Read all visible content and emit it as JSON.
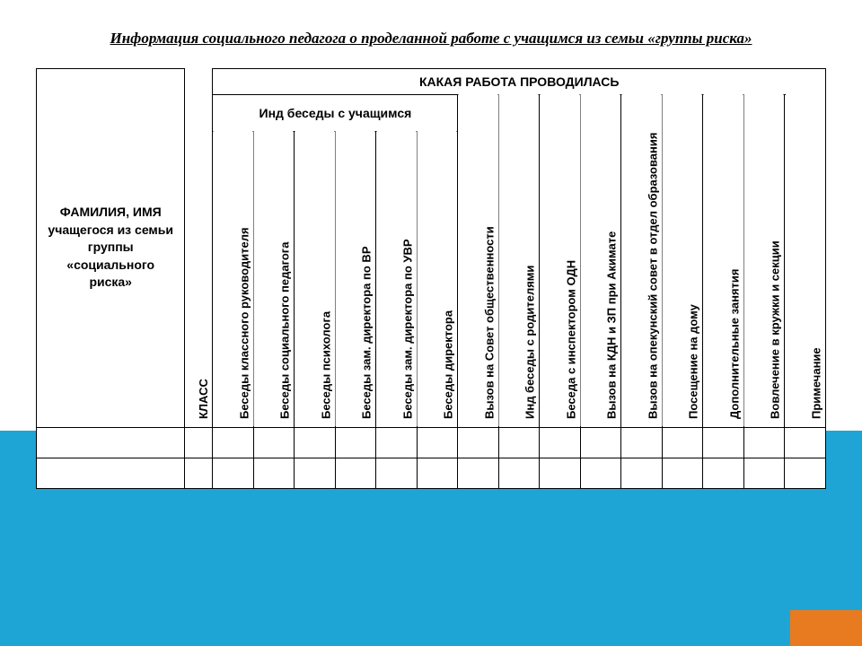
{
  "title": "Информация социального педагога о проделанной работе с учащимся из семьи «группы риска»",
  "colors": {
    "page_bg": "#ffffff",
    "accent_bar": "#1ea5d6",
    "corner_accent": "#e87a1f",
    "border": "#000000",
    "text": "#000000"
  },
  "typography": {
    "title_fontsize_pt": 13,
    "title_style": "italic bold underline",
    "header_fontsize_pt": 11,
    "vertical_fontsize_pt": 10
  },
  "table": {
    "type": "table",
    "structure": "3-level header with vertical rotated column labels, 2 empty data rows",
    "top_header": "КАКАЯ РАБОТА ПРОВОДИЛАСЬ",
    "sub_header": "Инд беседы с учащимся",
    "row_headers": {
      "name": "ФАМИЛИЯ, ИМЯ учащегося из семьи группы «социального риска»",
      "class": "КЛАСС"
    },
    "ind_columns": [
      "Беседы классного руководителя",
      "Беседы социального педагога",
      "Беседы психолога",
      "Беседы зам. директора по ВР",
      "Беседы зам. директора по УВР",
      "Беседы директора"
    ],
    "other_columns": [
      "Вызов на Совет общественности",
      "Инд беседы с родителями",
      "Беседа с инспектором ОДН",
      "Вызов на КДН и ЗП при Акимате",
      "Вызов на опекунский совет в отдел образования",
      "Посещение на дому",
      "Дополнительные занятия",
      "Вовлечение в кружки и секции",
      "Примечание"
    ],
    "data_rows": 2
  }
}
